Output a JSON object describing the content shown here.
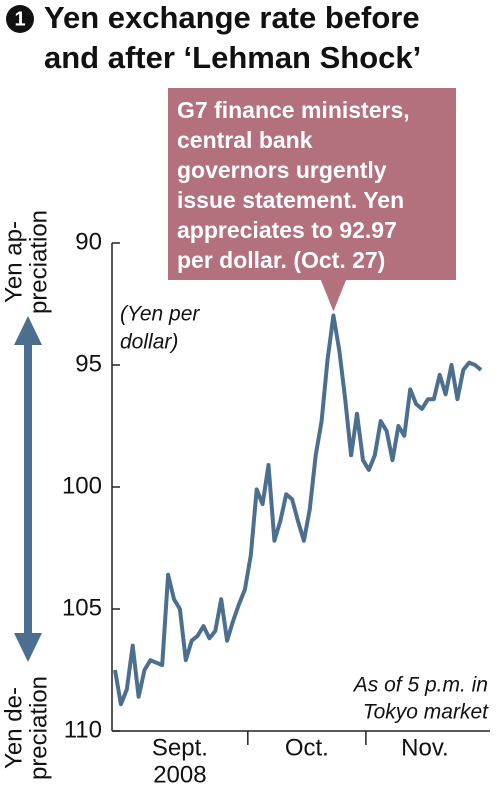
{
  "chart_data": {
    "type": "line",
    "title_number": "1",
    "title_lines": [
      "Yen exchange rate before",
      "and after ‘Lehman Shock’"
    ],
    "y_label_lines": [
      "(Yen per",
      "dollar)"
    ],
    "up_label_lines": [
      "Yen ap-",
      "preciation"
    ],
    "down_label_lines": [
      "Yen de-",
      "preciation"
    ],
    "annotation_lines": [
      "G7 finance ministers,",
      "central bank",
      "governors urgently",
      "issue statement. Yen",
      "appreciates to 92.97",
      "per dollar. (Oct. 27)"
    ],
    "note_lines": [
      "As of 5 p.m. in",
      "Tokyo market"
    ],
    "year": "2008",
    "color": "#4d6f8f",
    "annotation_color": "#b3707d",
    "ylim": [
      90,
      110
    ],
    "yticks": [
      90,
      95,
      100,
      105,
      110
    ],
    "y_inverted": true,
    "months": [
      {
        "name": "Sept.",
        "values": [
          107.5,
          108.9,
          108.3,
          106.5,
          108.6,
          107.5,
          107.1,
          107.2,
          107.3,
          103.6,
          104.6,
          105.0,
          107.1,
          106.3,
          106.1,
          105.7,
          106.2,
          105.9,
          104.6,
          106.3,
          105.5,
          104.8,
          104.2
        ]
      },
      {
        "name": "Oct.",
        "values": [
          102.8,
          100.1,
          100.7,
          99.1,
          102.2,
          101.4,
          100.3,
          100.5,
          101.4,
          102.2,
          100.9,
          98.7,
          97.3,
          94.8,
          92.97,
          94.4,
          96.4,
          98.7,
          97.0,
          98.9
        ]
      },
      {
        "name": "Nov.",
        "values": [
          99.3,
          98.7,
          97.3,
          97.7,
          98.9,
          97.5,
          97.9,
          96.0,
          96.6,
          96.8,
          96.4,
          96.4,
          95.4,
          96.2,
          95.0,
          96.4,
          95.2,
          94.9,
          95.0,
          95.2
        ]
      }
    ]
  }
}
